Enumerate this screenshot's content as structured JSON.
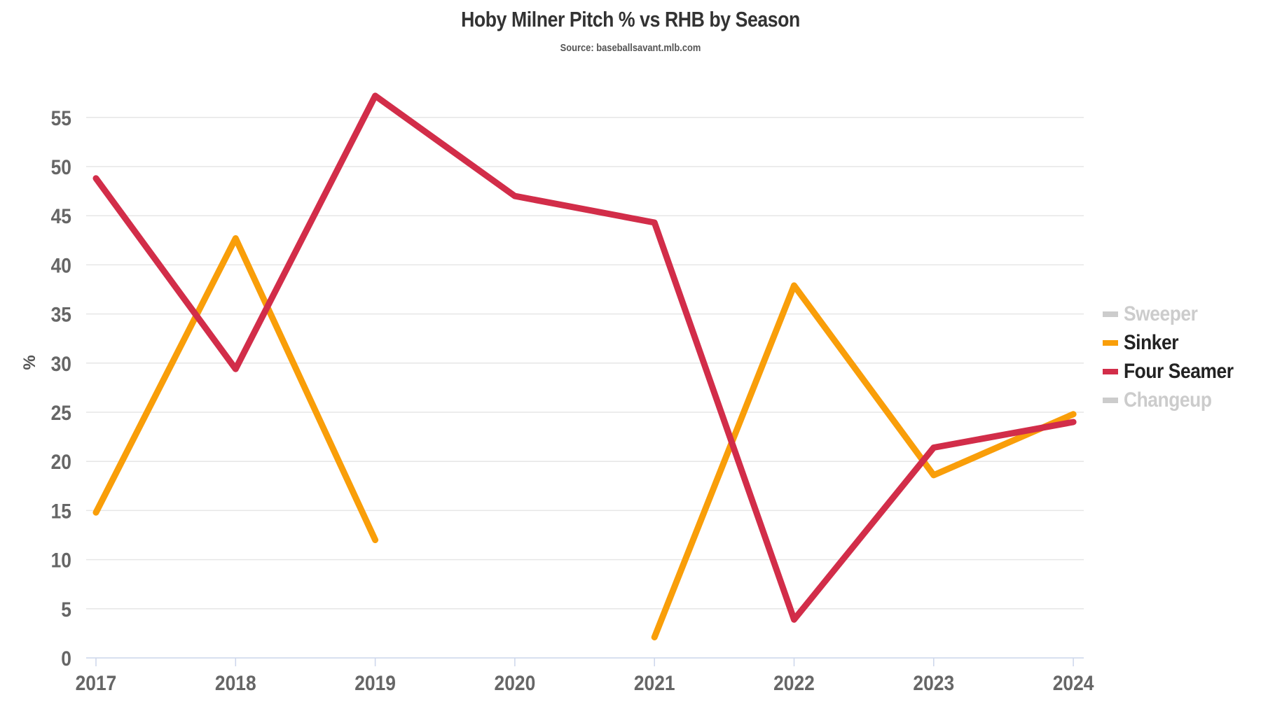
{
  "title": "Hoby Milner Pitch % vs RHB by Season",
  "subtitle": "Source: baseballsavant.mlb.com",
  "colors": {
    "sinker": "#F99E09",
    "four_seamer": "#D22D49",
    "inactive": "#CCCCCC",
    "grid": "#E6E6E6",
    "axis": "#CCD6EB",
    "tick_text": "#666666"
  },
  "legend": [
    {
      "label": "Sweeper",
      "color": "#CCCCCC",
      "active": false
    },
    {
      "label": "Sinker",
      "color": "#F99E09",
      "active": true
    },
    {
      "label": "Four Seamer",
      "color": "#D22D49",
      "active": true
    },
    {
      "label": "Changeup",
      "color": "#CCCCCC",
      "active": false
    }
  ],
  "chart_data": {
    "type": "line",
    "title": "Hoby Milner Pitch % vs RHB by Season",
    "subtitle": "Source: baseballsavant.mlb.com",
    "xlabel": "",
    "ylabel": "%",
    "categories": [
      "2017",
      "2018",
      "2019",
      "2020",
      "2021",
      "2022",
      "2023",
      "2024"
    ],
    "yticks": [
      0,
      5,
      10,
      15,
      20,
      25,
      30,
      35,
      40,
      45,
      50,
      55
    ],
    "ylim": [
      0,
      57.5
    ],
    "grid": true,
    "legend_position": "right",
    "series": [
      {
        "name": "Sweeper",
        "visible": false,
        "values": []
      },
      {
        "name": "Sinker",
        "visible": true,
        "color": "#F99E09",
        "values": [
          14.8,
          42.7,
          12.0,
          null,
          2.1,
          37.9,
          18.6,
          24.8
        ]
      },
      {
        "name": "Four Seamer",
        "visible": true,
        "color": "#D22D49",
        "values": [
          48.8,
          29.4,
          57.2,
          47.0,
          44.3,
          3.9,
          21.4,
          24.0
        ]
      },
      {
        "name": "Changeup",
        "visible": false,
        "values": []
      }
    ]
  }
}
